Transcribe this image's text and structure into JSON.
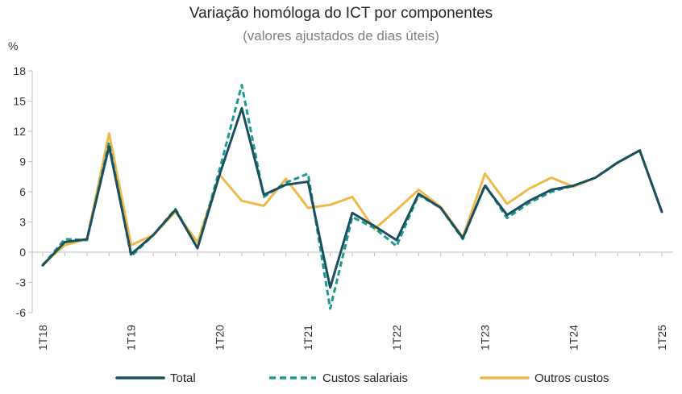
{
  "chart_data": {
    "type": "line",
    "title": "Variação homóloga do ICT por componentes",
    "subtitle": "(valores ajustados de dias úteis)",
    "ylabel": "%",
    "xlabel": "",
    "ylim": [
      -6,
      18
    ],
    "yticks": [
      -6,
      -3,
      0,
      3,
      6,
      9,
      12,
      15,
      18
    ],
    "grid": false,
    "legend_position": "bottom",
    "x": [
      "1T18",
      "2T18",
      "3T18",
      "4T18",
      "1T19",
      "2T19",
      "3T19",
      "4T19",
      "1T20",
      "2T20",
      "3T20",
      "4T20",
      "1T21",
      "2T21",
      "3T21",
      "4T21",
      "1T22",
      "2T22",
      "3T22",
      "4T22",
      "1T23",
      "2T23",
      "3T23",
      "4T23",
      "1T24",
      "2T24",
      "3T24",
      "4T24",
      "1T25"
    ],
    "xtick_labels": [
      "1T18",
      "1T19",
      "1T20",
      "1T21",
      "1T22",
      "1T23",
      "1T24",
      "1T25"
    ],
    "series": [
      {
        "name": "Total",
        "color": "#1b5060",
        "style": "solid",
        "values": [
          -1.3,
          1.0,
          1.3,
          10.5,
          -0.2,
          1.7,
          4.2,
          0.4,
          7.7,
          14.3,
          5.7,
          6.7,
          7.0,
          -3.5,
          3.9,
          2.6,
          1.2,
          5.8,
          4.4,
          1.4,
          6.6,
          3.7,
          5.1,
          6.2,
          6.6,
          7.4,
          8.9,
          10.1,
          4.0
        ]
      },
      {
        "name": "Custos salariais",
        "color": "#1e9a8f",
        "style": "dashed",
        "values": [
          -1.3,
          1.3,
          1.2,
          10.9,
          -0.4,
          1.7,
          4.3,
          0.4,
          8.2,
          16.6,
          5.5,
          6.9,
          7.8,
          -5.6,
          3.5,
          2.4,
          0.6,
          5.7,
          4.4,
          1.3,
          6.7,
          3.4,
          4.9,
          6.0,
          6.6,
          7.4,
          8.9,
          10.1,
          4.0
        ]
      },
      {
        "name": "Outros custos",
        "color": "#f0b84a",
        "style": "solid",
        "values": [
          -1.2,
          0.7,
          1.3,
          11.8,
          0.7,
          1.7,
          4.0,
          1.0,
          7.7,
          5.1,
          4.6,
          7.3,
          4.4,
          4.7,
          5.5,
          2.3,
          4.2,
          6.2,
          4.5,
          1.5,
          7.8,
          4.8,
          6.3,
          7.4,
          6.5,
          7.4,
          8.9,
          10.1,
          4.0
        ]
      }
    ]
  }
}
